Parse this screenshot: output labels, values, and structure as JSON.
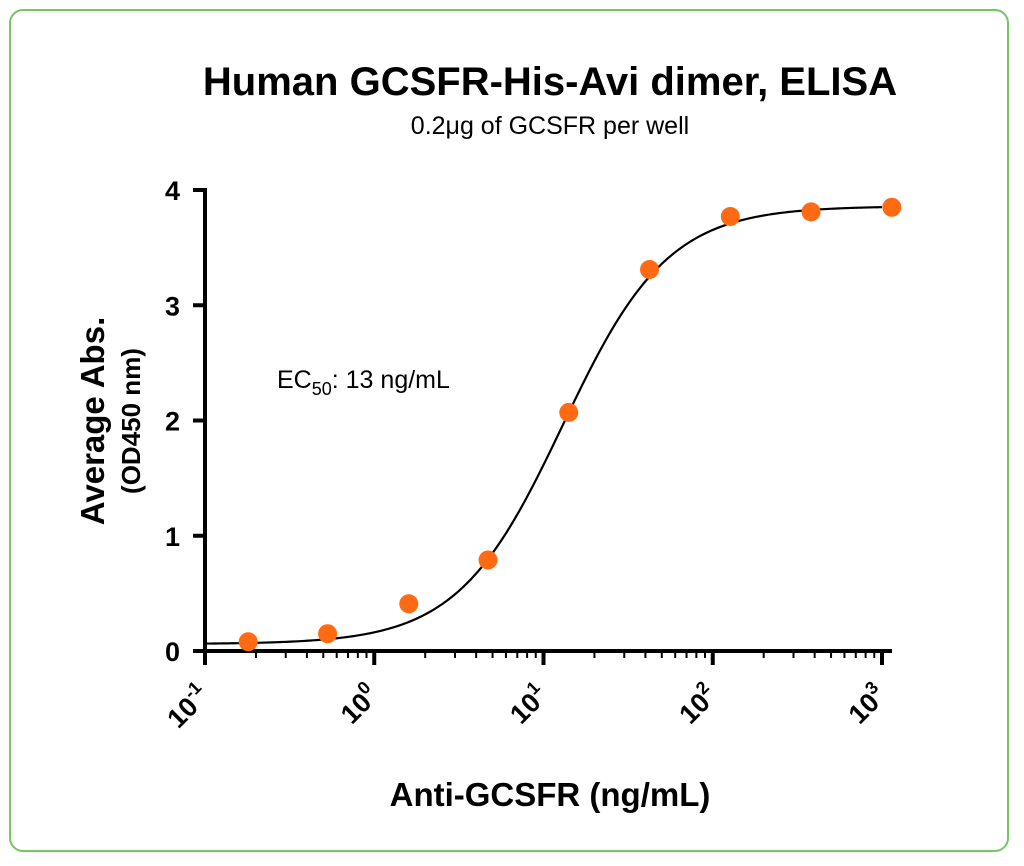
{
  "chart_data": {
    "type": "scatter",
    "title": "Human GCSFR-His-Avi dimer, ELISA",
    "subtitle": "0.2μg of GCSFR per well",
    "xlabel": "Anti-GCSFR (ng/mL)",
    "ylabel": "Average Abs.",
    "ylabel_sub": "(OD450 nm)",
    "xscale": "log10",
    "xlim": [
      0.1,
      1000
    ],
    "ylim": [
      0,
      4
    ],
    "x_tick_exponents": [
      "-1",
      "0",
      "1",
      "2",
      "3"
    ],
    "x_tick_base": "10",
    "y_ticks": [
      "0",
      "1",
      "2",
      "3",
      "4"
    ],
    "annotation": {
      "prefix": "EC",
      "subscript": "50",
      "suffix": ": 13 ng/mL"
    },
    "series": [
      {
        "name": "Human GCSFR-His-Avi dimer",
        "color": "#ff6a13",
        "x": [
          0.18,
          0.53,
          1.6,
          4.7,
          14.1,
          42.3,
          127,
          381,
          1143
        ],
        "y": [
          0.08,
          0.15,
          0.41,
          0.79,
          2.07,
          3.31,
          3.77,
          3.81,
          3.85
        ]
      }
    ],
    "fit": {
      "model": "4PL",
      "bottom": 0.06,
      "top": 3.86,
      "ec50": 13,
      "hill": 1.4,
      "color": "#000000"
    },
    "grid": false,
    "legend": "none"
  }
}
